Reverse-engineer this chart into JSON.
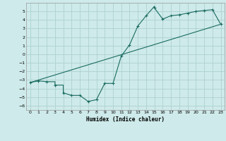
{
  "xlabel": "Humidex (Indice chaleur)",
  "bg_color": "#ceeaea",
  "grid_color": "#aed0d0",
  "line_color": "#1a6b60",
  "xlim": [
    -0.5,
    23.5
  ],
  "ylim": [
    -6.5,
    6.0
  ],
  "xticks": [
    0,
    1,
    2,
    3,
    4,
    5,
    6,
    7,
    8,
    9,
    10,
    11,
    12,
    13,
    14,
    15,
    16,
    17,
    18,
    19,
    20,
    21,
    22,
    23
  ],
  "yticks": [
    -6,
    -5,
    -4,
    -3,
    -2,
    -1,
    0,
    1,
    2,
    3,
    4,
    5
  ],
  "line1_x": [
    0,
    1,
    2,
    3,
    3,
    4,
    4,
    5,
    6,
    7,
    8,
    9,
    10,
    11,
    12,
    13,
    14,
    15,
    15,
    16,
    17,
    18,
    19,
    20,
    21,
    22,
    23
  ],
  "line1_y": [
    -3.3,
    -3.1,
    -3.2,
    -3.2,
    -3.6,
    -3.6,
    -4.5,
    -4.8,
    -4.8,
    -5.5,
    -5.3,
    -3.4,
    -3.4,
    -0.2,
    1.1,
    3.3,
    4.5,
    5.6,
    5.4,
    4.1,
    4.5,
    4.6,
    4.8,
    5.0,
    5.1,
    5.2,
    3.5
  ],
  "line2_x": [
    0,
    23
  ],
  "line2_y": [
    -3.3,
    3.5
  ],
  "marker_x": [
    0,
    1,
    2,
    3,
    4,
    5,
    6,
    7,
    8,
    9,
    10,
    11,
    12,
    13,
    14,
    15,
    16,
    17,
    18,
    19,
    20,
    21,
    22,
    23
  ],
  "marker_y": [
    -3.3,
    -3.1,
    -3.2,
    -3.6,
    -4.5,
    -4.8,
    -4.8,
    -5.5,
    -5.3,
    -3.4,
    -3.4,
    -0.2,
    1.1,
    3.3,
    4.5,
    5.4,
    4.1,
    4.5,
    4.6,
    4.8,
    5.0,
    5.1,
    5.2,
    3.5
  ]
}
